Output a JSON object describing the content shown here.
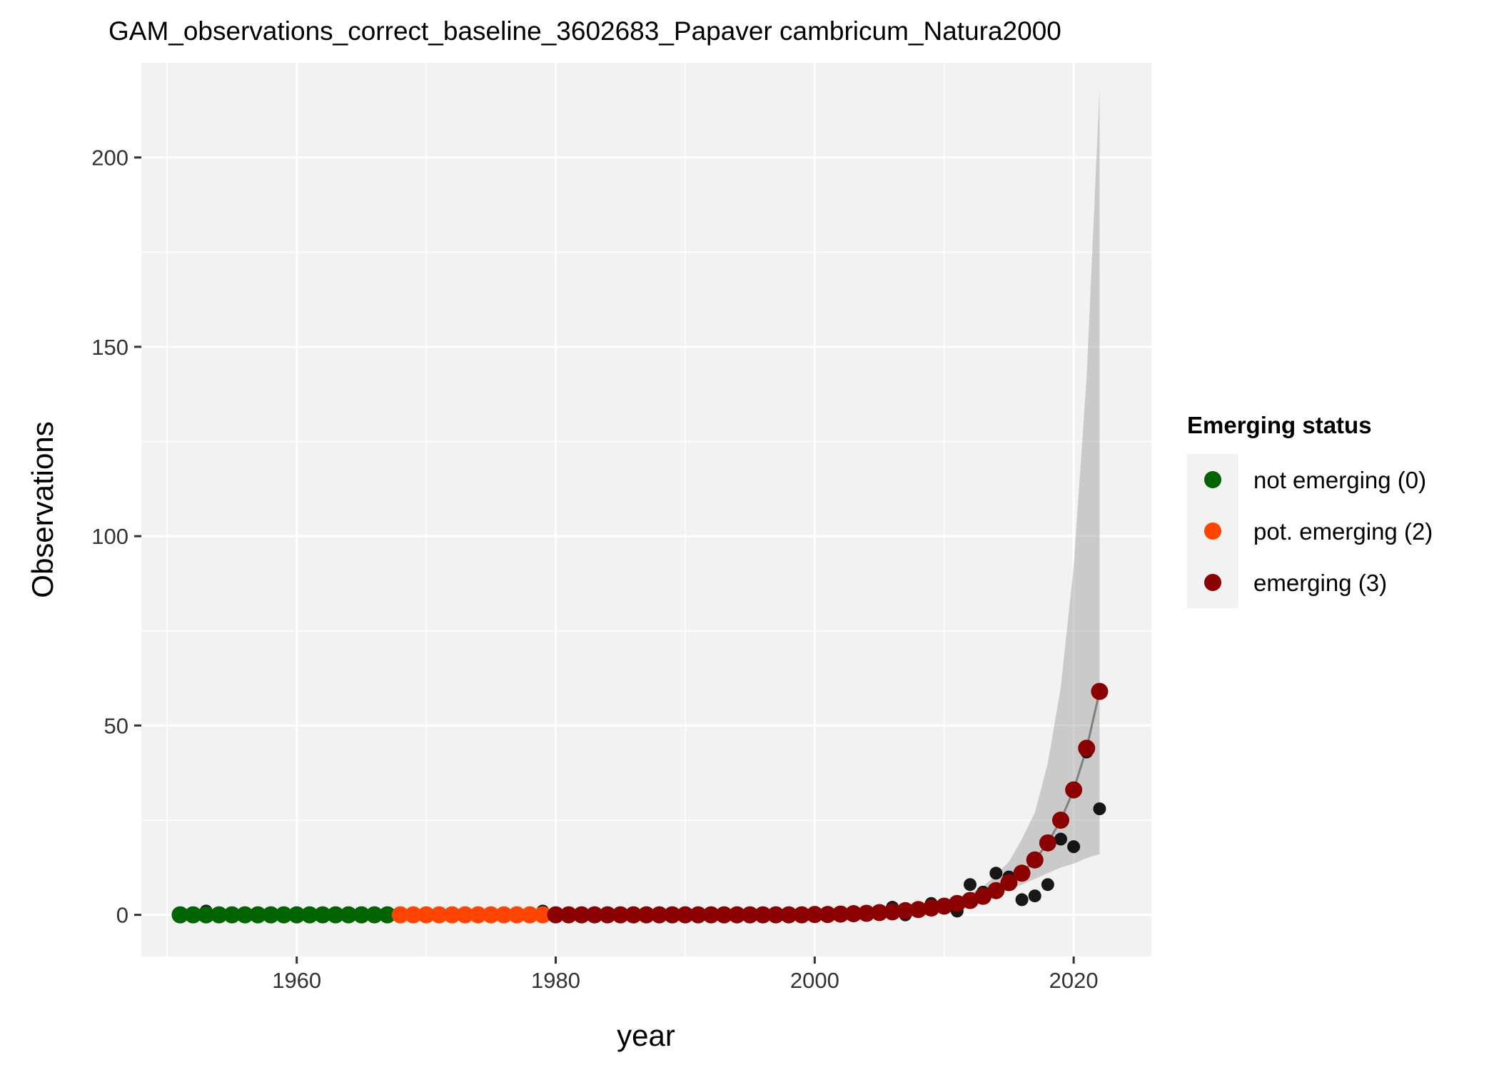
{
  "chart_data": {
    "type": "scatter",
    "title": "GAM_observations_correct_baseline_3602683_Papaver cambricum_Natura2000",
    "xlabel": "year",
    "ylabel": "Observations",
    "xlim": [
      1948,
      2026
    ],
    "ylim": [
      -11,
      225
    ],
    "x_ticks": [
      1960,
      1980,
      2000,
      2020
    ],
    "y_ticks": [
      0,
      50,
      100,
      150,
      200
    ],
    "grid": true,
    "legend": {
      "title": "Emerging status",
      "placement": "right",
      "entries": [
        {
          "label": "not emerging (0)",
          "color": "#006400"
        },
        {
          "label": "pot. emerging (2)",
          "color": "#FF4500"
        },
        {
          "label": "emerging (3)",
          "color": "#8B0000"
        }
      ]
    },
    "status_colors": {
      "0": "#006400",
      "2": "#FF4500",
      "3": "#8B0000"
    },
    "observed": {
      "color": "#000000",
      "x": [
        1953,
        1979,
        2006,
        2007,
        2009,
        2010,
        2011,
        2012,
        2013,
        2014,
        2015,
        2016,
        2017,
        2018,
        2019,
        2020,
        2021,
        2022
      ],
      "y": [
        1,
        1,
        2,
        0,
        3,
        2,
        1,
        8,
        6,
        11,
        10,
        4,
        5,
        8,
        20,
        18,
        43,
        28
      ]
    },
    "fitted": {
      "x": [
        1951,
        1952,
        1953,
        1954,
        1955,
        1956,
        1957,
        1958,
        1959,
        1960,
        1961,
        1962,
        1963,
        1964,
        1965,
        1966,
        1967,
        1968,
        1969,
        1970,
        1971,
        1972,
        1973,
        1974,
        1975,
        1976,
        1977,
        1978,
        1979,
        1980,
        1981,
        1982,
        1983,
        1984,
        1985,
        1986,
        1987,
        1988,
        1989,
        1990,
        1991,
        1992,
        1993,
        1994,
        1995,
        1996,
        1997,
        1998,
        1999,
        2000,
        2001,
        2002,
        2003,
        2004,
        2005,
        2006,
        2007,
        2008,
        2009,
        2010,
        2011,
        2012,
        2013,
        2014,
        2015,
        2016,
        2017,
        2018,
        2019,
        2020,
        2021,
        2022
      ],
      "y": [
        0,
        0,
        0,
        0,
        0,
        0,
        0,
        0,
        0,
        0,
        0,
        0,
        0,
        0,
        0,
        0,
        0,
        0,
        0,
        0,
        0,
        0,
        0,
        0,
        0,
        0,
        0,
        0,
        0,
        0,
        0,
        0,
        0,
        0,
        0,
        0,
        0,
        0,
        0,
        0,
        0,
        0,
        0,
        0,
        0,
        0,
        0,
        0,
        0,
        0.1,
        0.1,
        0.2,
        0.3,
        0.4,
        0.6,
        0.8,
        1.1,
        1.4,
        1.8,
        2.3,
        3.0,
        3.8,
        4.9,
        6.4,
        8.5,
        11,
        14.5,
        19,
        25,
        33,
        44,
        59
      ],
      "status": [
        0,
        0,
        0,
        0,
        0,
        0,
        0,
        0,
        0,
        0,
        0,
        0,
        0,
        0,
        0,
        0,
        0,
        2,
        2,
        2,
        2,
        2,
        2,
        2,
        2,
        2,
        2,
        2,
        2,
        3,
        3,
        3,
        3,
        3,
        3,
        3,
        3,
        3,
        3,
        3,
        3,
        3,
        3,
        3,
        3,
        3,
        3,
        3,
        3,
        3,
        3,
        3,
        3,
        3,
        3,
        3,
        3,
        3,
        3,
        3,
        3,
        3,
        3,
        3,
        3,
        3,
        3,
        3,
        3,
        3,
        3,
        3
      ]
    },
    "confidence_band": {
      "x": [
        2005,
        2006,
        2007,
        2008,
        2009,
        2010,
        2011,
        2012,
        2013,
        2014,
        2015,
        2016,
        2017,
        2018,
        2019,
        2020,
        2021,
        2022
      ],
      "lower": [
        0.5,
        0.7,
        0.9,
        1.2,
        1.5,
        2.0,
        2.6,
        3.3,
        4.2,
        5.3,
        6.6,
        8.0,
        9.5,
        11,
        12.5,
        13.5,
        15,
        16
      ],
      "upper": [
        0.8,
        1.0,
        1.4,
        1.8,
        2.4,
        3.2,
        4.2,
        5.6,
        7.5,
        10.5,
        14,
        20,
        27,
        40,
        60,
        92,
        142,
        218
      ]
    }
  }
}
